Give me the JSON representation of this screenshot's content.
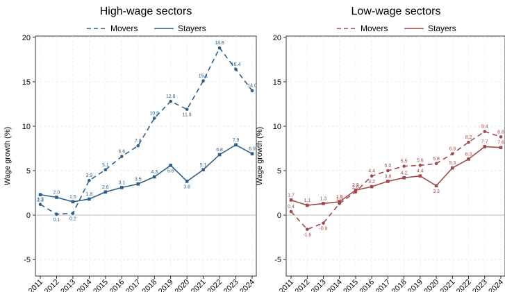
{
  "chart_data": [
    {
      "type": "line",
      "title": "High-wage sectors",
      "ylabel": "Wage growth (%)",
      "xlabel": "",
      "categories": [
        "2011",
        "2012",
        "2013",
        "2014",
        "2015",
        "2016",
        "2017",
        "2018",
        "2019",
        "2020",
        "2021",
        "2022",
        "2023",
        "2024"
      ],
      "ylim": [
        -6,
        21
      ],
      "yticks": [
        -5,
        0,
        5,
        10,
        15,
        20
      ],
      "ytick_labels": [
        "-5",
        "0",
        "5",
        "10",
        "15",
        "20"
      ],
      "grid": true,
      "legend": "top",
      "color": "#2c5f8a",
      "series": [
        {
          "name": "Movers",
          "style": "dashed",
          "marker": "circle",
          "values": [
            1.2,
            0.1,
            0.2,
            3.9,
            5.1,
            6.6,
            7.8,
            10.9,
            12.8,
            11.9,
            15.1,
            18.8,
            16.4,
            14.0
          ],
          "labels": [
            "1.2",
            "0.1",
            "0.2",
            "3.9",
            "5.1",
            "6.6",
            "7.8",
            "10.9",
            "12.8",
            "11.9",
            "15.1",
            "18.8",
            "16.4",
            "14.0"
          ]
        },
        {
          "name": "Stayers",
          "style": "solid",
          "marker": "square",
          "values": [
            2.3,
            2.0,
            1.5,
            1.8,
            2.6,
            3.1,
            3.5,
            4.3,
            5.6,
            3.8,
            5.1,
            6.8,
            7.9,
            6.9
          ],
          "labels": [
            "2.3",
            "2.0",
            "1.5",
            "1.8",
            "2.6",
            "3.1",
            "3.5",
            "4.3",
            "5.6",
            "3.8",
            "5.1",
            "6.8",
            "7.9",
            "6.9"
          ]
        }
      ]
    },
    {
      "type": "line",
      "title": "Low-wage sectors",
      "ylabel": "Wage growth (%)",
      "xlabel": "",
      "categories": [
        "2011",
        "2012",
        "2013",
        "2014",
        "2015",
        "2016",
        "2017",
        "2018",
        "2019",
        "2020",
        "2021",
        "2022",
        "2023",
        "2024"
      ],
      "ylim": [
        -6,
        21
      ],
      "yticks": [
        -5,
        0,
        5,
        10,
        15,
        20
      ],
      "ytick_labels": [
        "-5",
        "0",
        "5",
        "10",
        "15",
        "20"
      ],
      "grid": true,
      "legend": "top",
      "color": "#a3484a",
      "series": [
        {
          "name": "Movers",
          "style": "dashed",
          "marker": "circle",
          "values": [
            0.4,
            -1.6,
            -0.9,
            1.3,
            2.6,
            4.4,
            5.0,
            5.5,
            5.6,
            5.8,
            6.9,
            8.2,
            9.4,
            8.8
          ],
          "labels": [
            "0.4",
            "-1.6",
            "-0.9",
            "1.3",
            "2.6",
            "4.4",
            "5.0",
            "5.5",
            "5.6",
            "5.8",
            "6.9",
            "8.2",
            "9.4",
            "8.8"
          ]
        },
        {
          "name": "Stayers",
          "style": "solid",
          "marker": "square",
          "values": [
            1.7,
            1.1,
            1.3,
            1.5,
            2.8,
            3.2,
            3.8,
            4.2,
            4.4,
            3.3,
            5.3,
            6.3,
            7.7,
            7.6
          ],
          "labels": [
            "1.7",
            "1.1",
            "1.3",
            "1.5",
            "2.8",
            "3.2",
            "3.8",
            "4.2",
            "4.4",
            "3.3",
            "5.3",
            "6.3",
            "7.7",
            "7.6"
          ]
        }
      ]
    }
  ]
}
